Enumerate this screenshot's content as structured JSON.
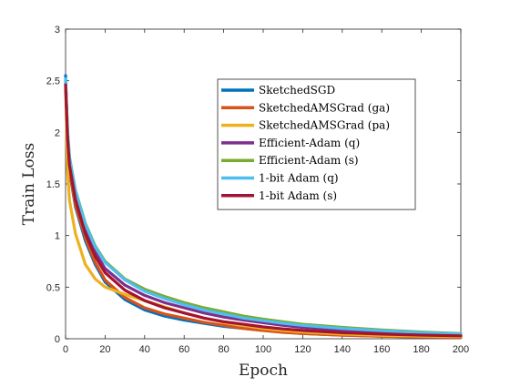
{
  "chart_data": {
    "type": "line",
    "title": "",
    "xlabel": "Epoch",
    "ylabel": "Train Loss",
    "xlim": [
      0,
      200
    ],
    "ylim": [
      0,
      3
    ],
    "xticks": [
      0,
      20,
      40,
      60,
      80,
      100,
      120,
      140,
      160,
      180,
      200
    ],
    "yticks": [
      0,
      0.5,
      1,
      1.5,
      2,
      2.5,
      3
    ],
    "ytick_labels": [
      "0",
      "0.5",
      "1",
      "1.5",
      "2",
      "2.5",
      "3"
    ],
    "grid": false,
    "legend_position": "upper-right",
    "x": [
      0,
      1,
      2,
      5,
      10,
      15,
      20,
      30,
      40,
      50,
      60,
      70,
      80,
      90,
      100,
      110,
      120,
      140,
      160,
      180,
      200
    ],
    "series": [
      {
        "name": "SketchedSGD",
        "color": "#0072BD",
        "values": [
          2.55,
          1.9,
          1.62,
          1.28,
          0.95,
          0.72,
          0.55,
          0.38,
          0.28,
          0.22,
          0.18,
          0.15,
          0.12,
          0.1,
          0.08,
          0.065,
          0.05,
          0.035,
          0.025,
          0.018,
          0.012
        ]
      },
      {
        "name": "SketchedAMSGrad (ga)",
        "color": "#D95319",
        "values": [
          2.5,
          1.92,
          1.63,
          1.3,
          0.98,
          0.74,
          0.57,
          0.4,
          0.3,
          0.24,
          0.2,
          0.16,
          0.13,
          0.1,
          0.08,
          0.062,
          0.05,
          0.034,
          0.024,
          0.018,
          0.012
        ]
      },
      {
        "name": "SketchedAMSGrad (pa)",
        "color": "#EDB120",
        "values": [
          2.45,
          1.62,
          1.34,
          1.02,
          0.72,
          0.58,
          0.5,
          0.43,
          0.37,
          0.31,
          0.25,
          0.2,
          0.16,
          0.13,
          0.1,
          0.08,
          0.065,
          0.045,
          0.033,
          0.025,
          0.02
        ]
      },
      {
        "name": "Efficient-Adam (q)",
        "color": "#7E2F8E",
        "values": [
          2.48,
          1.95,
          1.7,
          1.38,
          1.05,
          0.84,
          0.68,
          0.52,
          0.42,
          0.35,
          0.3,
          0.25,
          0.21,
          0.18,
          0.155,
          0.13,
          0.11,
          0.08,
          0.06,
          0.045,
          0.035
        ]
      },
      {
        "name": "Efficient-Adam (s)",
        "color": "#77AC30",
        "values": [
          2.48,
          2.0,
          1.76,
          1.44,
          1.12,
          0.9,
          0.75,
          0.58,
          0.48,
          0.41,
          0.35,
          0.3,
          0.26,
          0.22,
          0.19,
          0.165,
          0.14,
          0.11,
          0.085,
          0.065,
          0.05
        ]
      },
      {
        "name": "1-bit Adam (q)",
        "color": "#4DBEEE",
        "values": [
          2.52,
          2.02,
          1.76,
          1.43,
          1.11,
          0.89,
          0.74,
          0.57,
          0.46,
          0.39,
          0.33,
          0.28,
          0.24,
          0.2,
          0.175,
          0.15,
          0.13,
          0.1,
          0.078,
          0.06,
          0.045
        ]
      },
      {
        "name": "1-bit Adam (s)",
        "color": "#A2142F",
        "values": [
          2.46,
          1.95,
          1.68,
          1.35,
          1.02,
          0.8,
          0.64,
          0.47,
          0.37,
          0.3,
          0.25,
          0.2,
          0.165,
          0.14,
          0.115,
          0.095,
          0.08,
          0.058,
          0.045,
          0.035,
          0.028
        ]
      }
    ]
  }
}
